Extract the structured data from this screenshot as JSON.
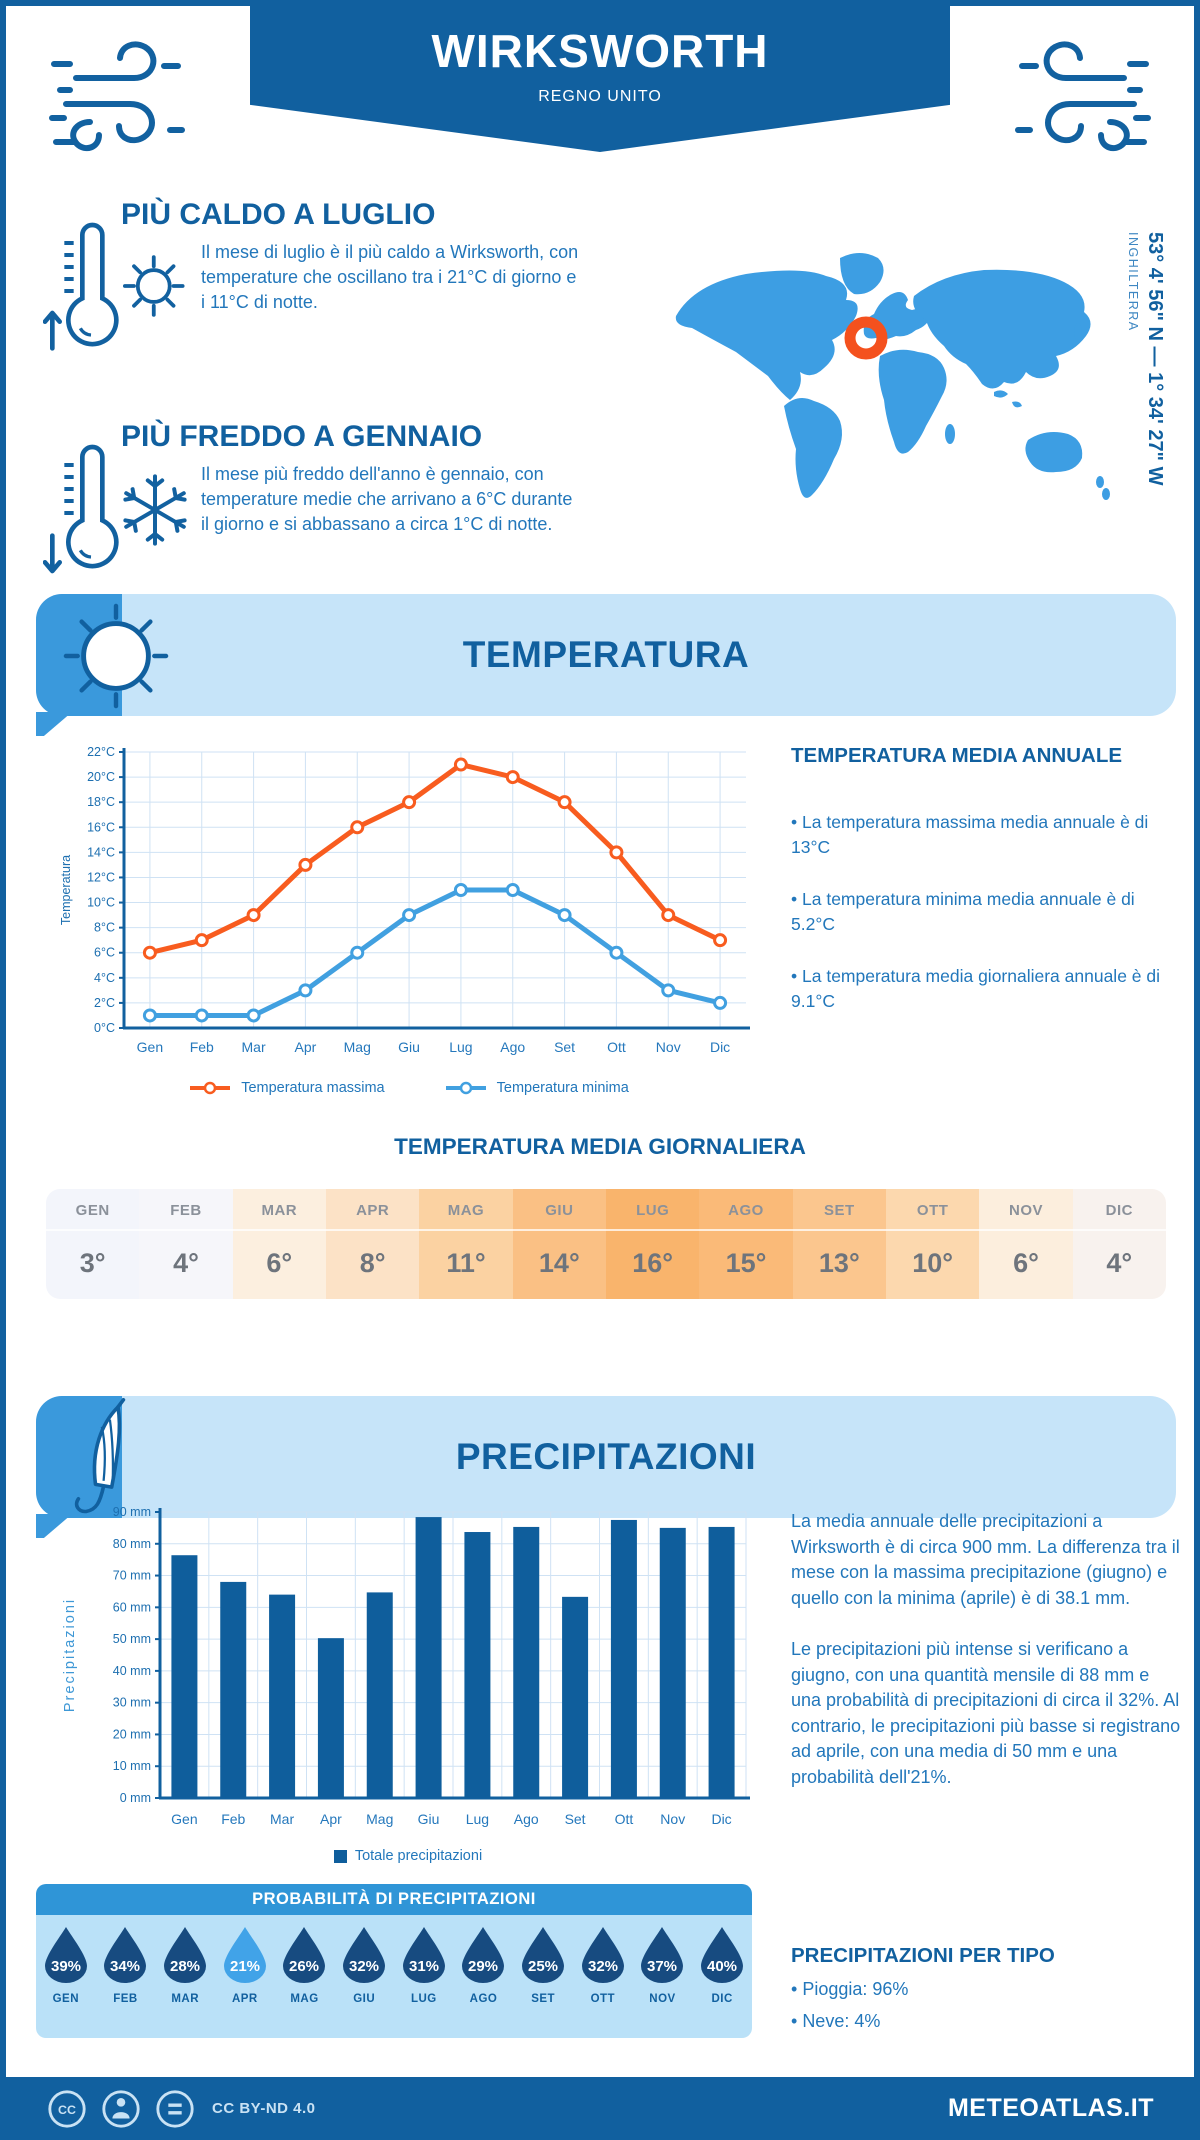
{
  "header": {
    "title": "WIRKSWORTH",
    "subtitle": "REGNO UNITO"
  },
  "location": {
    "coordinates": "53° 4' 56\" N — 1° 34' 27\" W",
    "region": "INGHILTERRA"
  },
  "highlights": [
    {
      "title": "PIÙ CALDO A LUGLIO",
      "text": "Il mese di luglio è il più caldo a Wirksworth, con temperature che oscillano tra i 21°C di giorno e i 11°C di notte."
    },
    {
      "title": "PIÙ FREDDO A GENNAIO",
      "text": "Il mese più freddo dell'anno è gennaio, con temperature medie che arrivano a 6°C durante il giorno e si abbassano a circa 1°C di notte."
    }
  ],
  "temperature_section": {
    "banner": "TEMPERATURA",
    "annual": {
      "heading": "TEMPERATURA MEDIA ANNUALE",
      "bullets": [
        "La temperatura massima media annuale è di 13°C",
        "La temperatura minima media annuale è di 5.2°C",
        "La temperatura media giornaliera annuale è di 9.1°C"
      ]
    },
    "daily": {
      "heading": "TEMPERATURA MEDIA GIORNALIERA",
      "months": [
        "GEN",
        "FEB",
        "MAR",
        "APR",
        "MAG",
        "GIU",
        "LUG",
        "AGO",
        "SET",
        "OTT",
        "NOV",
        "DIC"
      ],
      "values": [
        "3°",
        "4°",
        "6°",
        "8°",
        "11°",
        "14°",
        "16°",
        "15°",
        "13°",
        "10°",
        "6°",
        "4°"
      ],
      "colors": [
        "#F3F5FB",
        "#F6F6FA",
        "#FCEFDF",
        "#FCE2C6",
        "#FBD2A2",
        "#FAC084",
        "#F9B46C",
        "#FABA78",
        "#FBC68E",
        "#FCD8AE",
        "#FCEEDD",
        "#F8F2EE"
      ]
    }
  },
  "precipitation_section": {
    "banner": "PRECIPITAZIONI",
    "paragraphs": [
      "La media annuale delle precipitazioni a Wirksworth è di circa 900 mm. La differenza tra il mese con la massima precipitazione (giugno) e quello con la minima (aprile) è di 38.1 mm.",
      "Le precipitazioni più intense si verificano a giugno, con una quantità mensile di 88 mm e una probabilità di precipitazioni di circa il 32%. Al contrario, le precipitazioni più basse si registrano ad aprile, con una media di 50 mm e una probabilità dell'21%."
    ],
    "probability": {
      "heading": "PROBABILITÀ DI PRECIPITAZIONI",
      "months": [
        "GEN",
        "FEB",
        "MAR",
        "APR",
        "MAG",
        "GIU",
        "LUG",
        "AGO",
        "SET",
        "OTT",
        "NOV",
        "DIC"
      ],
      "values": [
        "39%",
        "34%",
        "28%",
        "21%",
        "26%",
        "32%",
        "31%",
        "29%",
        "25%",
        "32%",
        "37%",
        "40%"
      ],
      "drop_color": "#174B80",
      "highlight_color": "#41A3E8",
      "highlight_index": 3
    },
    "by_type": {
      "heading": "PRECIPITAZIONI PER TIPO",
      "items": [
        "Pioggia: 96%",
        "Neve: 4%"
      ]
    }
  },
  "footer": {
    "license": "CC BY-ND 4.0",
    "site": "METEOATLAS.IT"
  },
  "colors": {
    "primary": "#11609F",
    "banner_light": "#C6E4F9",
    "banner_icon_block": "#3A99DC",
    "map_blue": "#3D9EE3",
    "marker_orange": "#F4511E",
    "text_blue": "#2277BB",
    "grid_blue": "#CFE2F4",
    "prob_header": "#2F95D7",
    "prob_body": "#BAE1F8"
  },
  "chart_data": [
    {
      "type": "line",
      "title": "",
      "ylabel": "Temperatura",
      "categories": [
        "Gen",
        "Feb",
        "Mar",
        "Apr",
        "Mag",
        "Giu",
        "Lug",
        "Ago",
        "Set",
        "Ott",
        "Nov",
        "Dic"
      ],
      "ylim": [
        0,
        22
      ],
      "ytick_step": 2,
      "ytick_suffix": "°C",
      "grid": true,
      "legend_position": "bottom",
      "series": [
        {
          "name": "Temperatura massima",
          "color": "#F85C1F",
          "values": [
            6,
            7,
            9,
            13,
            16,
            18,
            21,
            20,
            18,
            14,
            9,
            7
          ]
        },
        {
          "name": "Temperatura minima",
          "color": "#41A0E0",
          "values": [
            1,
            1,
            1,
            3,
            6,
            9,
            11,
            11,
            9,
            6,
            3,
            2
          ]
        }
      ]
    },
    {
      "type": "bar",
      "title": "",
      "ylabel": "Precipitazioni",
      "categories": [
        "Gen",
        "Feb",
        "Mar",
        "Apr",
        "Mag",
        "Giu",
        "Lug",
        "Ago",
        "Set",
        "Ott",
        "Nov",
        "Dic"
      ],
      "ylim": [
        0,
        90
      ],
      "ytick_step": 10,
      "ytick_suffix": " mm",
      "grid": true,
      "legend_position": "bottom",
      "series": [
        {
          "name": "Totale precipitazioni",
          "color": "#0F5E9C",
          "values": [
            76.4,
            68,
            64,
            50.3,
            64.7,
            88.4,
            83.7,
            85.3,
            63.3,
            87.5,
            85,
            85.3
          ]
        }
      ]
    }
  ]
}
